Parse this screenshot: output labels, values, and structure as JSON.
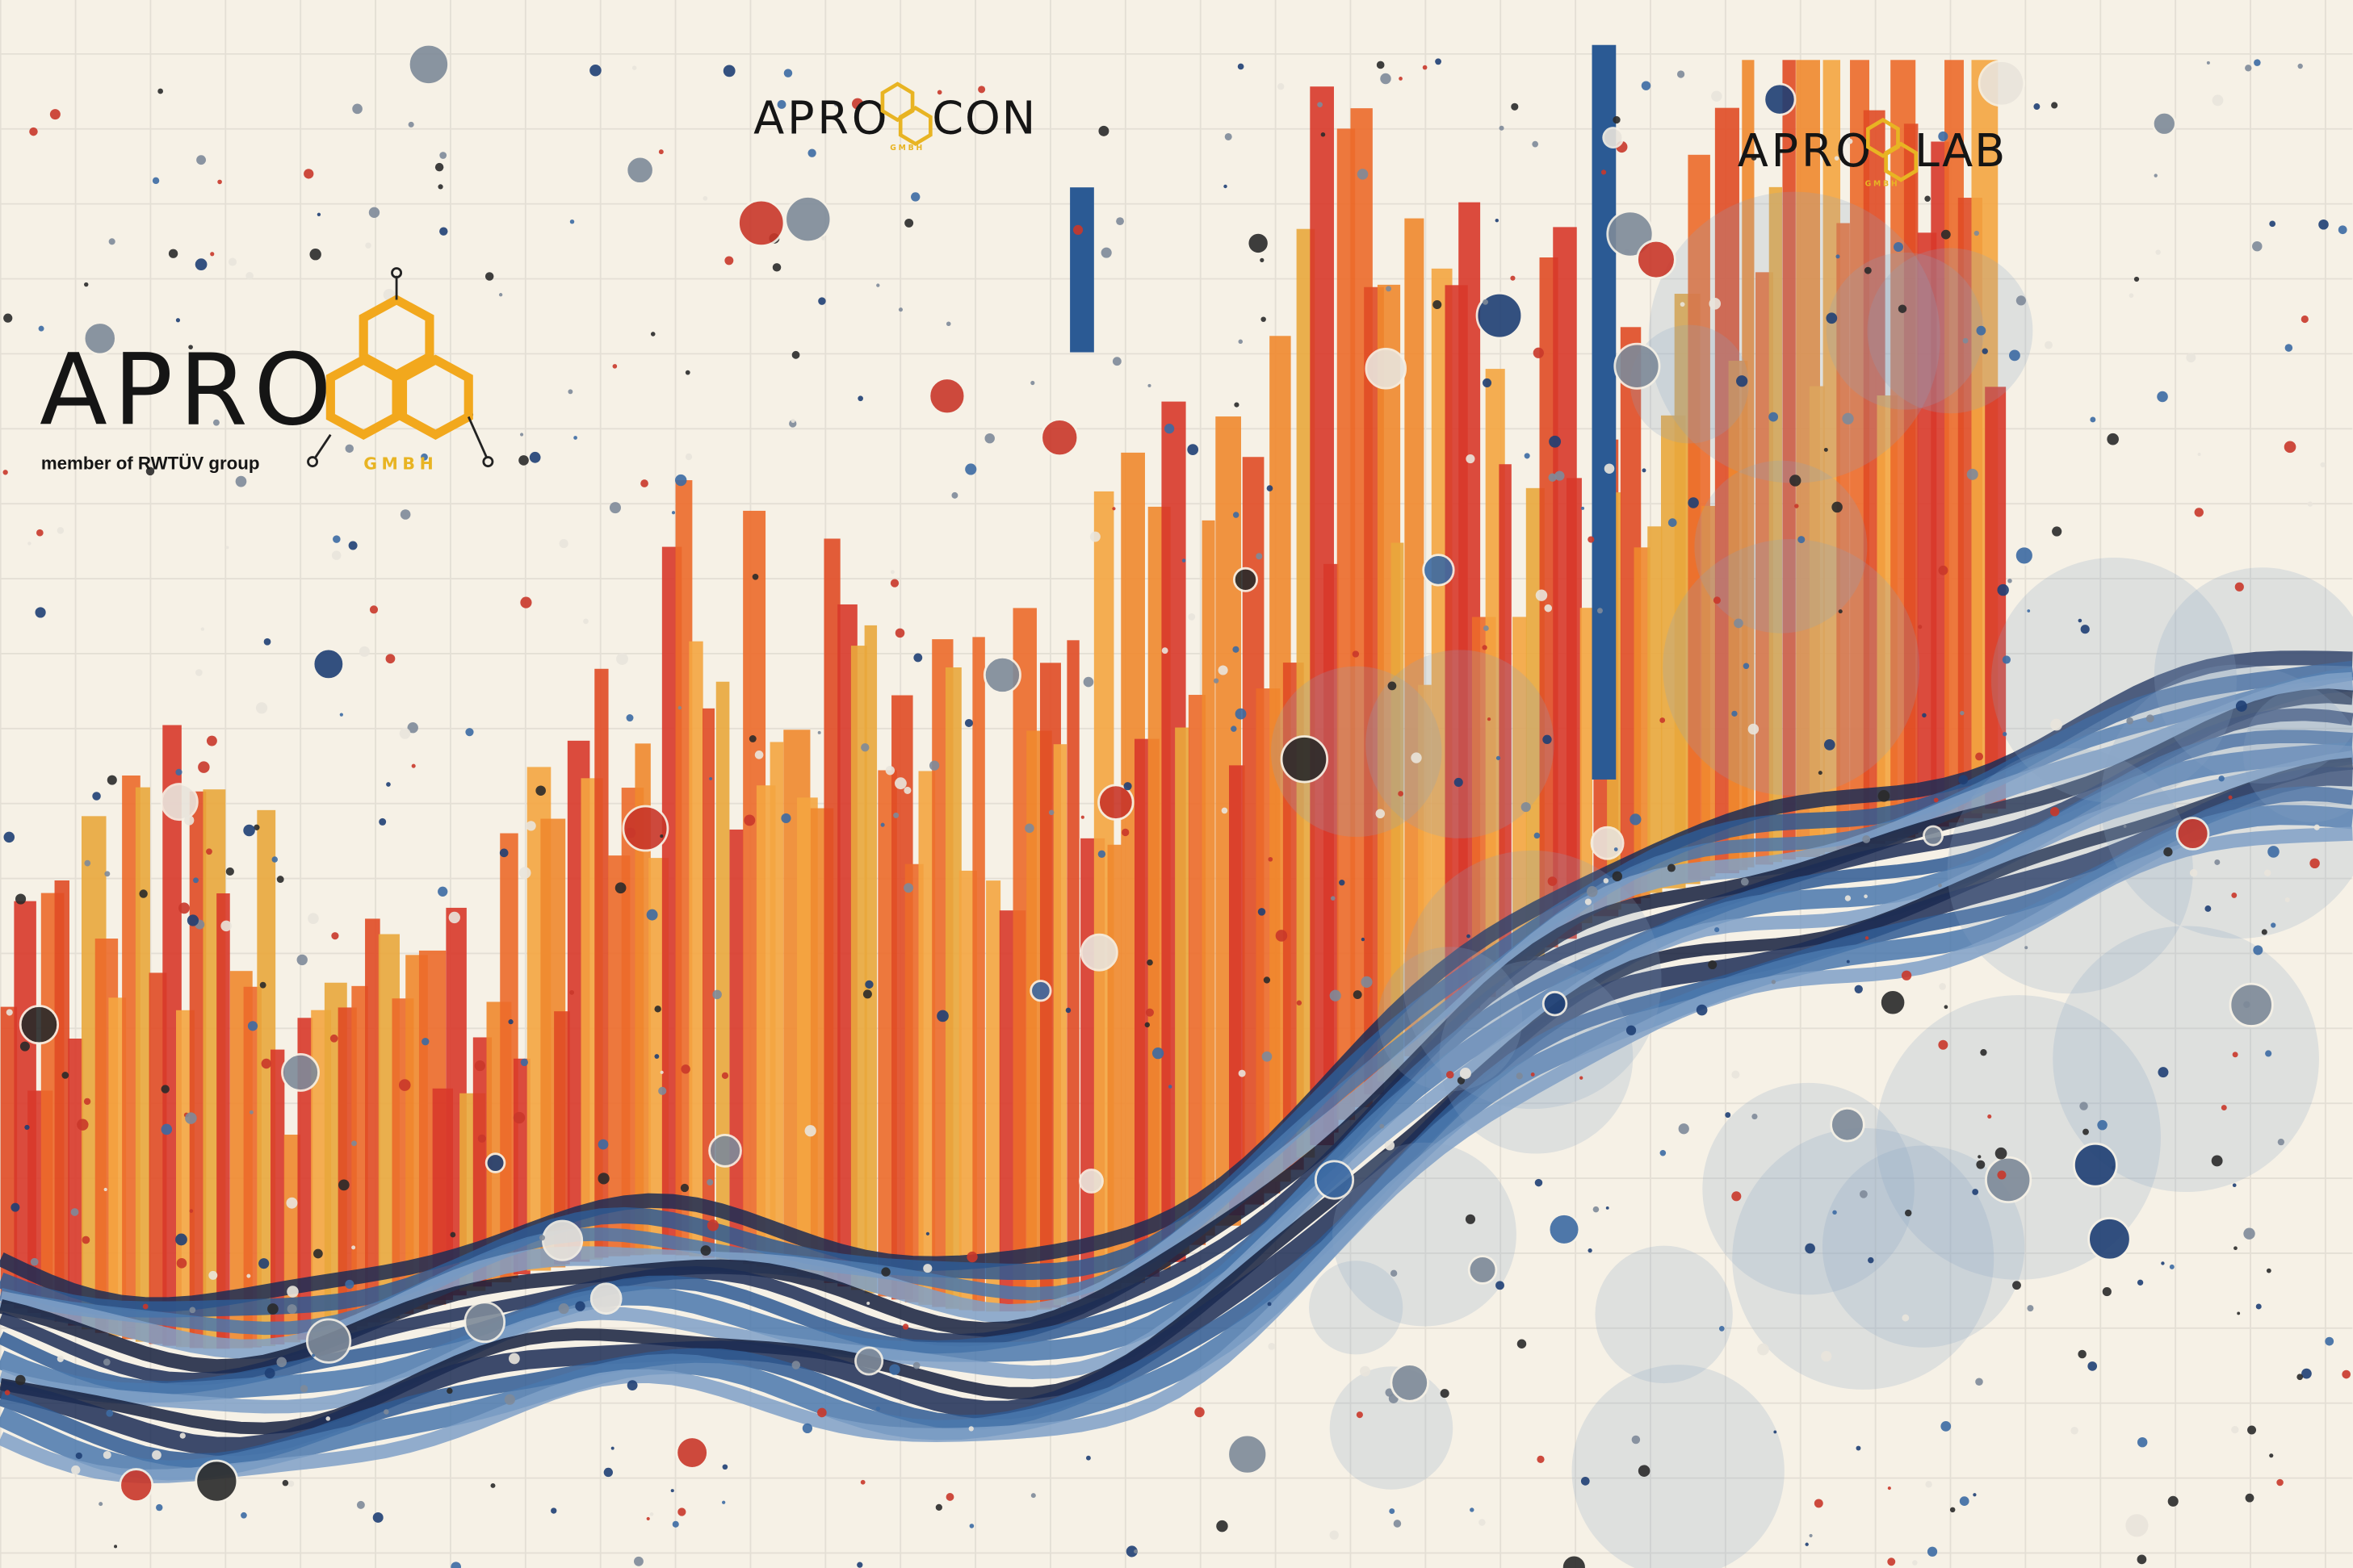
{
  "logos": [
    {
      "name": "APRO",
      "tagline": "member of RWTÜV group",
      "suffix": "GMBH"
    },
    {
      "name": "APRO",
      "product": "CON",
      "suffix": "GMBH"
    },
    {
      "name": "APRO",
      "product": "LAB",
      "suffix": "GMBH"
    }
  ]
}
